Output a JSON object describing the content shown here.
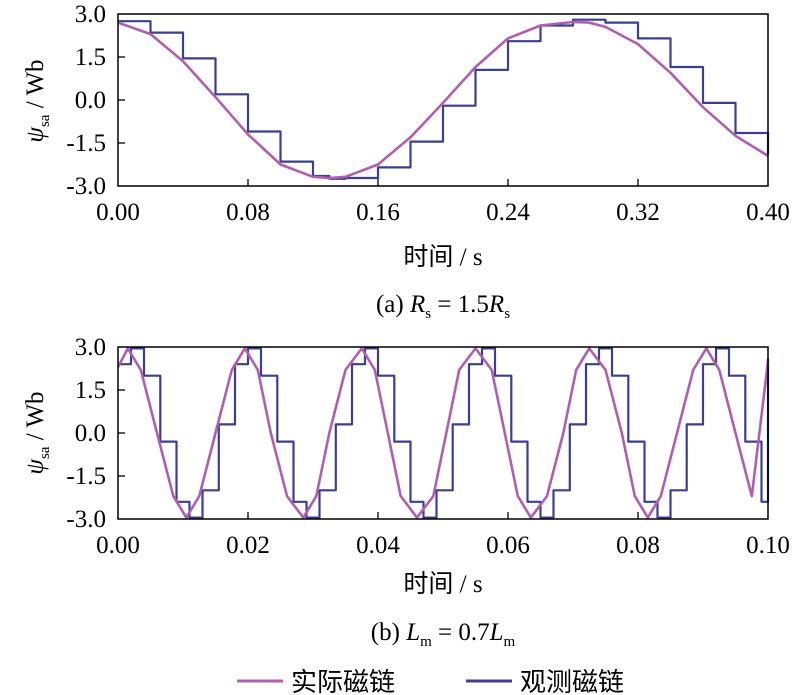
{
  "chart_data": [
    {
      "type": "line",
      "caption": "(a) R_s = 1.5R̂_s",
      "caption_parts": {
        "prefix": "(a) ",
        "symbol": "R",
        "sub": "s",
        "eq": " = 1.5",
        "hat_symbol": "R",
        "hat_sub": "s"
      },
      "xlabel": "时间 / s",
      "ylabel_symbol": "ψ",
      "ylabel_sub": "sa",
      "ylabel_unit": " / Wb",
      "xlim": [
        0.0,
        0.4
      ],
      "ylim": [
        -3.0,
        3.0
      ],
      "xticks": [
        0.0,
        0.08,
        0.16,
        0.24,
        0.32,
        0.4
      ],
      "xtick_labels": [
        "0.00",
        "0.08",
        "0.16",
        "0.24",
        "0.32",
        "0.40"
      ],
      "yticks": [
        3.0,
        1.5,
        0.0,
        -1.5,
        -3.0
      ],
      "ytick_labels": [
        "3.0",
        "1.5",
        "0.0",
        "-1.5",
        "-3.0"
      ],
      "grid": false,
      "series": [
        {
          "name": "实际磁链",
          "color": "#b05fb0",
          "x": [
            0.0,
            0.02,
            0.04,
            0.06,
            0.08,
            0.1,
            0.12,
            0.13,
            0.14,
            0.16,
            0.18,
            0.2,
            0.22,
            0.24,
            0.26,
            0.28,
            0.29,
            0.3,
            0.32,
            0.34,
            0.36,
            0.38,
            0.4
          ],
          "y": [
            2.7,
            2.3,
            1.35,
            0.1,
            -1.2,
            -2.25,
            -2.68,
            -2.72,
            -2.68,
            -2.25,
            -1.3,
            -0.1,
            1.15,
            2.15,
            2.6,
            2.72,
            2.7,
            2.55,
            1.95,
            0.95,
            -0.25,
            -1.25,
            -1.95
          ]
        },
        {
          "name": "观测磁链",
          "color": "#3b3f8f",
          "x": [
            0.0,
            0.02,
            0.04,
            0.06,
            0.08,
            0.1,
            0.12,
            0.13,
            0.14,
            0.16,
            0.18,
            0.2,
            0.22,
            0.24,
            0.26,
            0.28,
            0.29,
            0.3,
            0.32,
            0.34,
            0.36,
            0.38,
            0.4
          ],
          "y": [
            2.75,
            2.35,
            1.45,
            0.2,
            -1.1,
            -2.15,
            -2.65,
            -2.75,
            -2.72,
            -2.35,
            -1.45,
            -0.2,
            1.05,
            2.05,
            2.6,
            2.8,
            2.8,
            2.7,
            2.15,
            1.15,
            -0.1,
            -1.15,
            -1.9
          ]
        }
      ]
    },
    {
      "type": "line",
      "caption": "(b) L_m = 0.7L̂_m",
      "caption_parts": {
        "prefix": "(b) ",
        "symbol": "L",
        "sub": "m",
        "eq": " = 0.7",
        "hat_symbol": "L",
        "hat_sub": "m"
      },
      "xlabel": "时间 / s",
      "ylabel_symbol": "ψ",
      "ylabel_sub": "sa",
      "ylabel_unit": " / Wb",
      "xlim": [
        0.0,
        0.1
      ],
      "ylim": [
        -3.0,
        3.0
      ],
      "xticks": [
        0.0,
        0.02,
        0.04,
        0.06,
        0.08,
        0.1
      ],
      "xtick_labels": [
        "0.00",
        "0.02",
        "0.04",
        "0.06",
        "0.08",
        "0.10"
      ],
      "yticks": [
        3.0,
        1.5,
        0.0,
        -1.5,
        -3.0
      ],
      "ytick_labels": [
        "3.0",
        "1.5",
        "0.0",
        "-1.5",
        "-3.0"
      ],
      "grid": false,
      "series": [
        {
          "name": "实际磁链",
          "color": "#b05fb0",
          "x": [
            0.0,
            0.0015,
            0.0035,
            0.006,
            0.0085,
            0.0105,
            0.0125,
            0.015,
            0.0175,
            0.0195,
            0.0215,
            0.0235,
            0.026,
            0.0285,
            0.0305,
            0.0325,
            0.035,
            0.0375,
            0.0395,
            0.0415,
            0.0435,
            0.046,
            0.0485,
            0.0505,
            0.0525,
            0.055,
            0.0575,
            0.0595,
            0.0615,
            0.0635,
            0.066,
            0.0685,
            0.0705,
            0.0725,
            0.075,
            0.0775,
            0.0795,
            0.0815,
            0.0835,
            0.086,
            0.0885,
            0.0905,
            0.0925,
            0.095,
            0.0975,
            0.1
          ],
          "y": [
            2.3,
            2.95,
            2.2,
            0.0,
            -2.2,
            -2.95,
            -2.2,
            0.0,
            2.2,
            2.95,
            2.2,
            0.0,
            -2.2,
            -2.95,
            -2.2,
            0.0,
            2.2,
            2.95,
            2.2,
            0.0,
            -2.2,
            -2.95,
            -2.2,
            0.0,
            2.2,
            2.95,
            2.2,
            0.0,
            -2.2,
            -2.95,
            -2.2,
            0.0,
            2.2,
            2.95,
            2.2,
            0.0,
            -2.2,
            -2.95,
            -2.2,
            0.0,
            2.2,
            2.95,
            2.2,
            0.0,
            -2.2,
            2.5
          ]
        },
        {
          "name": "观测磁链",
          "color": "#3b3f8f",
          "x": [
            0.0,
            0.002,
            0.004,
            0.0065,
            0.009,
            0.011,
            0.013,
            0.0155,
            0.018,
            0.02,
            0.022,
            0.0245,
            0.027,
            0.029,
            0.031,
            0.0335,
            0.036,
            0.038,
            0.04,
            0.0425,
            0.045,
            0.047,
            0.049,
            0.0515,
            0.054,
            0.056,
            0.058,
            0.0605,
            0.063,
            0.065,
            0.067,
            0.0695,
            0.072,
            0.074,
            0.076,
            0.0785,
            0.081,
            0.083,
            0.085,
            0.0875,
            0.09,
            0.092,
            0.094,
            0.0965,
            0.099,
            0.1
          ],
          "y": [
            2.4,
            2.95,
            2.0,
            -0.3,
            -2.4,
            -2.95,
            -2.0,
            0.3,
            2.4,
            2.95,
            2.0,
            -0.3,
            -2.4,
            -2.95,
            -2.0,
            0.3,
            2.4,
            2.95,
            2.0,
            -0.3,
            -2.4,
            -2.95,
            -2.0,
            0.3,
            2.4,
            2.95,
            2.0,
            -0.3,
            -2.4,
            -2.95,
            -2.0,
            0.3,
            2.4,
            2.95,
            2.0,
            -0.3,
            -2.4,
            -2.95,
            -2.0,
            0.3,
            2.4,
            2.95,
            2.0,
            -0.3,
            -2.4,
            2.6
          ]
        }
      ]
    }
  ],
  "legend": {
    "placement": "bottom-center",
    "items": [
      {
        "label": "实际磁链",
        "color": "#b05fb0"
      },
      {
        "label": "观测磁链",
        "color": "#3b3f8f"
      }
    ]
  }
}
